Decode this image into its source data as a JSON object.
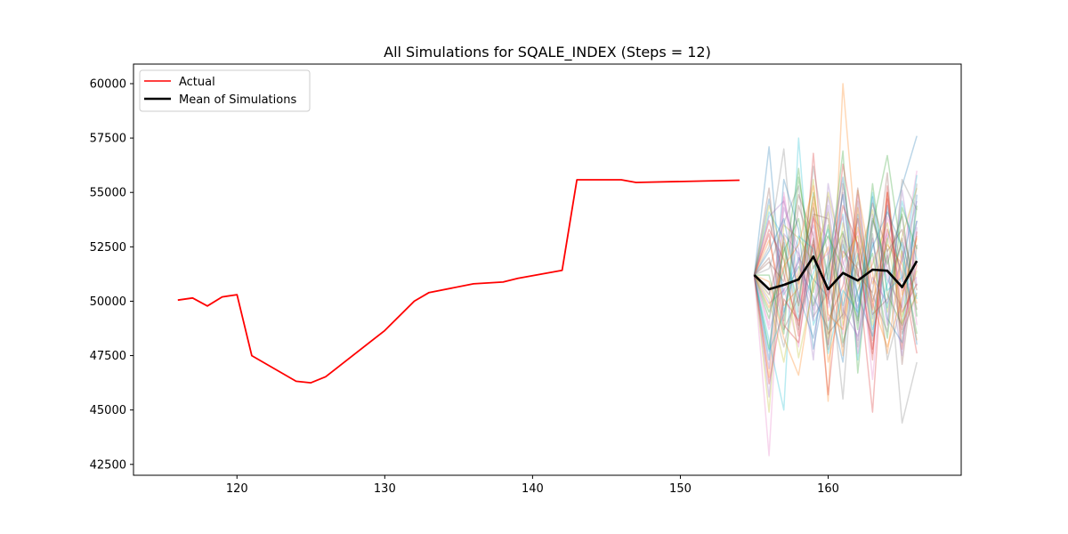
{
  "chart_data": {
    "type": "line",
    "title": "All Simulations for SQALE_INDEX (Steps = 12)",
    "xlabel": "",
    "ylabel": "",
    "xlim": [
      113,
      169
    ],
    "ylim": [
      42000,
      60900
    ],
    "xticks": [
      120,
      130,
      140,
      150,
      160
    ],
    "yticks": [
      42500,
      45000,
      47500,
      50000,
      52500,
      55000,
      57500,
      60000
    ],
    "grid": false,
    "legend": {
      "position": "top-left",
      "entries": [
        "Actual",
        "Mean of Simulations"
      ]
    },
    "actual": {
      "name": "Actual",
      "color": "#ff0000",
      "x": [
        116,
        117,
        118,
        119,
        120,
        121,
        124,
        125,
        126,
        130,
        132,
        133,
        136,
        138,
        139,
        142,
        143,
        146,
        147,
        154
      ],
      "y": [
        50050,
        50150,
        49780,
        50200,
        50300,
        47500,
        46320,
        46250,
        46530,
        48650,
        50000,
        50400,
        50800,
        50880,
        51050,
        51420,
        55580,
        55580,
        55460,
        55560
      ]
    },
    "mean": {
      "name": "Mean of Simulations",
      "color": "#000000",
      "x": [
        155,
        156,
        157,
        158,
        159,
        160,
        161,
        162,
        163,
        164,
        165,
        166
      ],
      "y": [
        51200,
        50550,
        50750,
        51000,
        52050,
        50550,
        51300,
        50950,
        51450,
        51400,
        50650,
        51850
      ]
    },
    "simulations": {
      "x": [
        155,
        156,
        157,
        158,
        159,
        160,
        161,
        162,
        163,
        164,
        165,
        166
      ],
      "start": 51200,
      "colors": [
        "#1f77b4",
        "#ff7f0e",
        "#2ca02c",
        "#d62728",
        "#9467bd",
        "#8c564b",
        "#e377c2",
        "#7f7f7f",
        "#bcbd22",
        "#17becf"
      ],
      "series": [
        [
          51200,
          57100,
          49500,
          52000,
          51000,
          50200,
          47200,
          54000,
          49200,
          52800,
          55300,
          57600
        ],
        [
          51200,
          46500,
          53000,
          50800,
          54500,
          45400,
          60000,
          52000,
          49600,
          55000,
          50300,
          53000
        ],
        [
          51200,
          47800,
          52500,
          49800,
          55000,
          51000,
          56900,
          46700,
          53500,
          56700,
          52000,
          48500
        ],
        [
          51200,
          53700,
          51200,
          48900,
          52800,
          45700,
          52300,
          51500,
          44900,
          55000,
          47800,
          53200
        ],
        [
          51200,
          49900,
          50500,
          51800,
          53500,
          50300,
          55000,
          49000,
          54000,
          51000,
          49700,
          53700
        ],
        [
          51200,
          52000,
          48700,
          50200,
          54000,
          53800,
          49200,
          52700,
          50000,
          52100,
          48500,
          50400
        ],
        [
          51200,
          42900,
          55000,
          50900,
          53200,
          49700,
          51700,
          53200,
          46400,
          53900,
          51800,
          56000
        ],
        [
          51200,
          52500,
          57000,
          49500,
          56200,
          52000,
          45500,
          54600,
          48200,
          52400,
          44400,
          47200
        ],
        [
          51200,
          44900,
          53500,
          52900,
          51800,
          54100,
          48900,
          51900,
          54200,
          49500,
          53000,
          55200
        ],
        [
          51200,
          48200,
          45000,
          57500,
          48900,
          50700,
          54000,
          47300,
          52700,
          49700,
          54600,
          51900
        ],
        [
          51200,
          54700,
          50300,
          51600,
          50200,
          48700,
          52600,
          50300,
          48400,
          54400,
          50900,
          53700
        ],
        [
          51200,
          50900,
          48300,
          46600,
          50900,
          52500,
          47500,
          55100,
          51300,
          47600,
          52300,
          49900
        ],
        [
          51200,
          49200,
          52300,
          53800,
          49800,
          51600,
          53200,
          48700,
          55400,
          50300,
          48900,
          54400
        ],
        [
          51200,
          53300,
          51900,
          48400,
          56800,
          49100,
          50700,
          53800,
          47800,
          53300,
          51300,
          47600
        ],
        [
          51200,
          46900,
          54300,
          52400,
          47300,
          55400,
          51800,
          49700,
          52900,
          48900,
          55100,
          50700
        ],
        [
          51200,
          55200,
          49100,
          54400,
          52200,
          47800,
          55400,
          51200,
          50400,
          55900,
          47100,
          52600
        ],
        [
          51200,
          48700,
          50600,
          47900,
          53800,
          52900,
          48500,
          54900,
          49700,
          51900,
          53900,
          48900
        ],
        [
          51200,
          51500,
          53600,
          55300,
          49300,
          50400,
          52800,
          47900,
          53100,
          47300,
          50000,
          55400
        ],
        [
          51200,
          50100,
          47200,
          51300,
          55600,
          48300,
          53600,
          50800,
          51700,
          53600,
          49300,
          51400
        ],
        [
          51200,
          54100,
          52900,
          49200,
          51300,
          53300,
          49800,
          52200,
          48700,
          50800,
          52700,
          50100
        ],
        [
          51200,
          47300,
          55600,
          53300,
          47800,
          51400,
          54900,
          49300,
          54800,
          49200,
          48100,
          54900
        ],
        [
          51200,
          52800,
          49800,
          50600,
          54800,
          47200,
          50200,
          53400,
          50800,
          52600,
          51700,
          48200
        ],
        [
          51200,
          49500,
          51400,
          56100,
          50400,
          53500,
          48100,
          50500,
          52200,
          48300,
          54300,
          52400
        ],
        [
          51200,
          53100,
          48900,
          48100,
          52600,
          49900,
          56300,
          52400,
          47600,
          54700,
          49500,
          50800
        ],
        [
          51200,
          45600,
          53100,
          52200,
          49600,
          54800,
          51200,
          48200,
          53700,
          51500,
          47500,
          53400
        ],
        [
          51200,
          51800,
          50900,
          54900,
          53000,
          48500,
          49400,
          55200,
          49400,
          50100,
          52900,
          49600
        ],
        [
          51200,
          48900,
          54800,
          49900,
          51600,
          52200,
          53900,
          47600,
          51900,
          53100,
          50500,
          51100
        ],
        [
          51200,
          50500,
          47900,
          51000,
          54300,
          50900,
          47900,
          51800,
          50300,
          48600,
          55600,
          54200
        ],
        [
          51200,
          54400,
          52100,
          47400,
          50700,
          55000,
          52000,
          53000,
          48900,
          52900,
          49000,
          50300
        ],
        [
          51200,
          47700,
          49400,
          53000,
          52400,
          47600,
          50500,
          49500,
          55000,
          50500,
          51100,
          55800
        ],
        [
          51200,
          52300,
          53800,
          50300,
          48300,
          51900,
          55700,
          50000,
          52500,
          54100,
          52500,
          48000
        ],
        [
          51200,
          49700,
          51600,
          52600,
          55300,
          49400,
          48700,
          54300,
          49900,
          47900,
          50200,
          52900
        ],
        [
          51200,
          51200,
          48500,
          55700,
          51500,
          53000,
          51500,
          49100,
          53800,
          51700,
          54000,
          49300
        ],
        [
          51200,
          46200,
          50100,
          49100,
          53900,
          50100,
          54400,
          52600,
          47300,
          55300,
          48700,
          51700
        ],
        [
          51200,
          53900,
          54600,
          51900,
          49100,
          54400,
          49600,
          48400,
          51100,
          49900,
          51900,
          54600
        ],
        [
          51200,
          50300,
          52700,
          48700,
          52900,
          48000,
          53100,
          51100,
          54500,
          52300,
          53300,
          50500
        ]
      ]
    }
  }
}
